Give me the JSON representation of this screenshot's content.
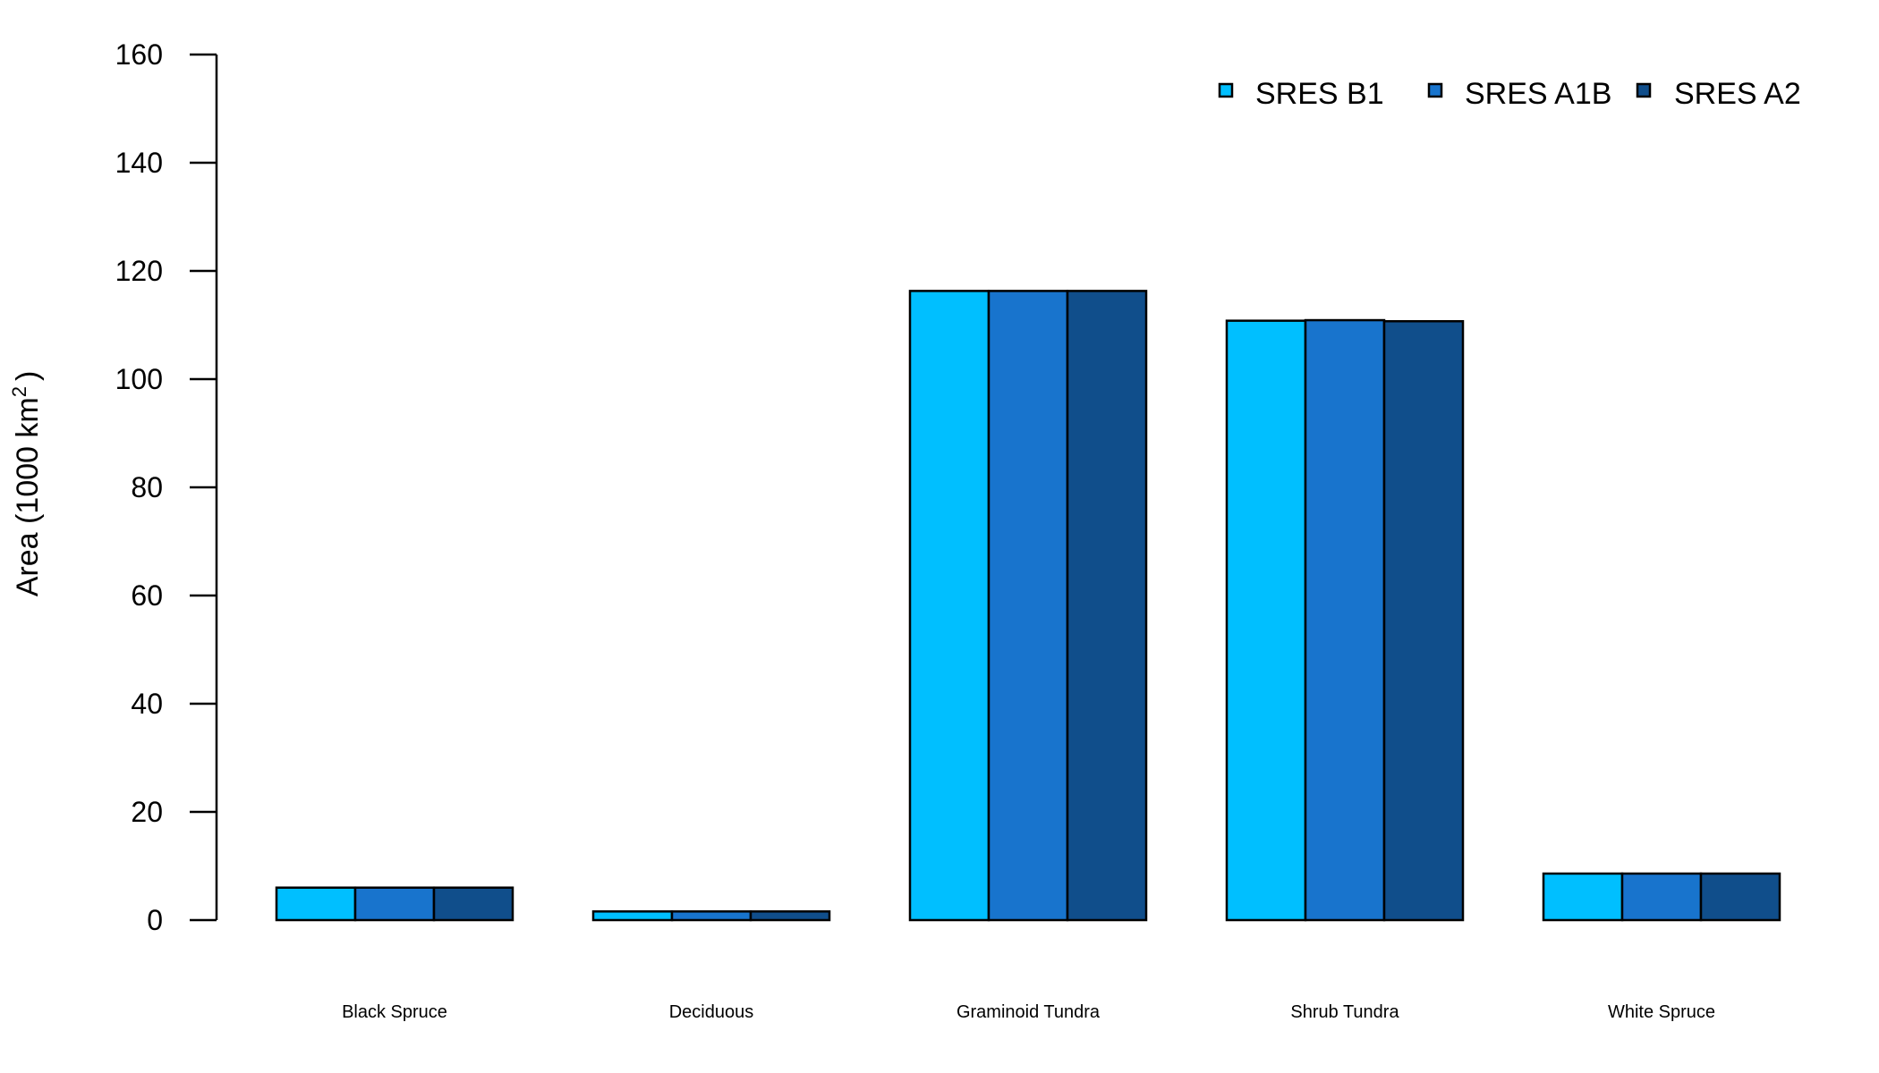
{
  "chart_data": {
    "type": "bar",
    "title": "",
    "xlabel": "",
    "ylabel": "Area (1000 km",
    "ylabel_superscript": "2",
    "ylabel_suffix": ")",
    "ylim": [
      0,
      160
    ],
    "yticks": [
      0,
      20,
      40,
      60,
      80,
      100,
      120,
      140,
      160
    ],
    "categories": [
      "Black Spruce",
      "Deciduous",
      "Graminoid Tundra",
      "Shrub Tundra",
      "White Spruce"
    ],
    "series": [
      {
        "name": "SRES B1",
        "color": "#00BFFF",
        "values": [
          6.0,
          1.6,
          116.3,
          110.8,
          8.6
        ]
      },
      {
        "name": "SRES A1B",
        "color": "#1874CD",
        "values": [
          6.0,
          1.6,
          116.3,
          110.9,
          8.6
        ]
      },
      {
        "name": "SRES A2",
        "color": "#104E8B",
        "values": [
          6.0,
          1.6,
          116.3,
          110.7,
          8.6
        ]
      }
    ],
    "grid": false,
    "legend_position": "top-right"
  }
}
